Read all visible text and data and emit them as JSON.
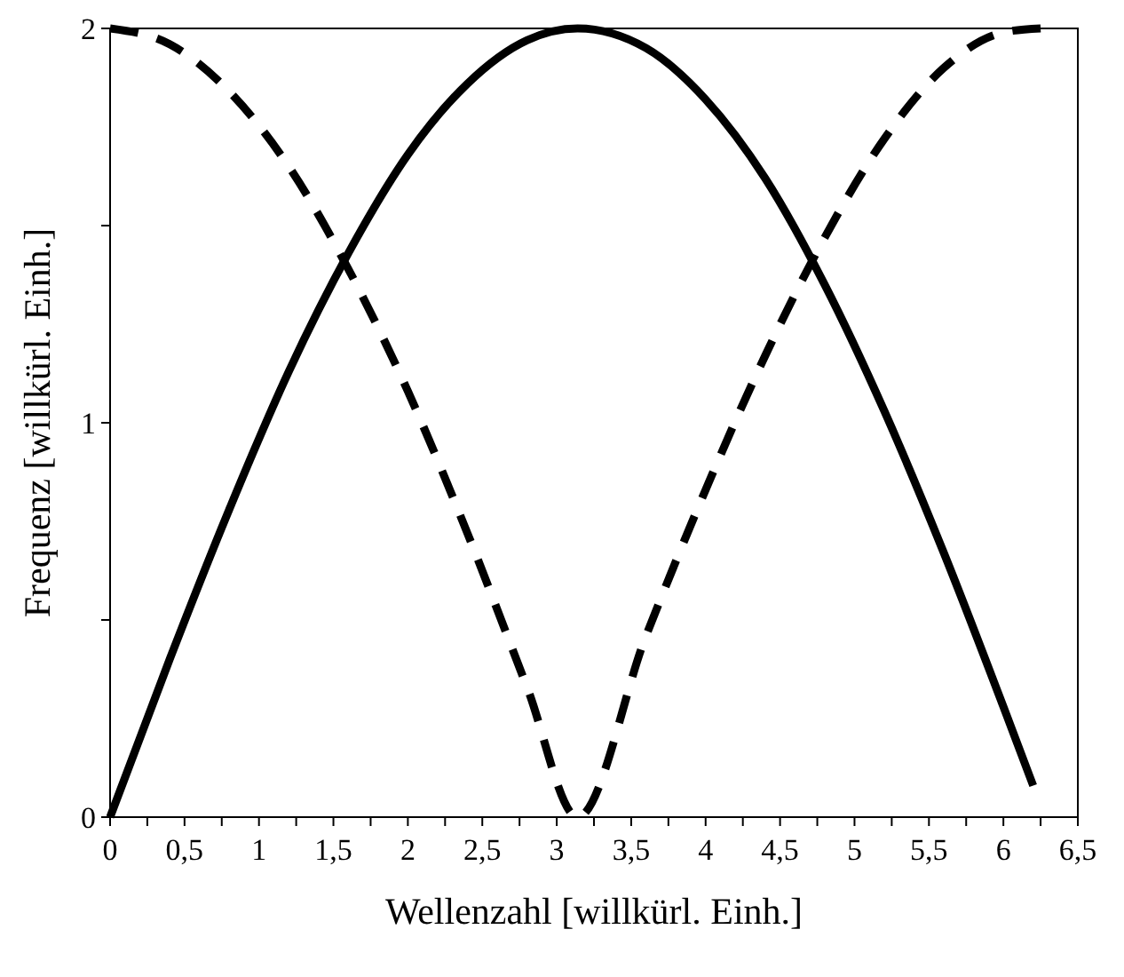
{
  "chart_data": {
    "type": "line",
    "xlabel": "Wellenzahl [willkürl. Einh.]",
    "ylabel": "Frequenz [willkürl. Einh.]",
    "xlim": [
      0,
      6.5
    ],
    "ylim": [
      0,
      2
    ],
    "xticks": [
      0,
      {
        "value": 0.25,
        "label": null
      },
      {
        "value": 0.5,
        "label": "0,5"
      },
      {
        "value": 0.75,
        "label": null
      },
      1,
      {
        "value": 1.25,
        "label": null
      },
      {
        "value": 1.5,
        "label": "1,5"
      },
      {
        "value": 1.75,
        "label": null
      },
      2,
      {
        "value": 2.25,
        "label": null
      },
      {
        "value": 2.5,
        "label": "2,5"
      },
      {
        "value": 2.75,
        "label": null
      },
      3,
      {
        "value": 3.25,
        "label": null
      },
      {
        "value": 3.5,
        "label": "3,5"
      },
      {
        "value": 3.75,
        "label": null
      },
      4,
      {
        "value": 4.25,
        "label": null
      },
      {
        "value": 4.5,
        "label": "4,5"
      },
      {
        "value": 4.75,
        "label": null
      },
      5,
      {
        "value": 5.25,
        "label": null
      },
      {
        "value": 5.5,
        "label": "5,5"
      },
      {
        "value": 5.75,
        "label": null
      },
      6,
      {
        "value": 6.25,
        "label": null
      },
      {
        "value": 6.5,
        "label": "6,5"
      }
    ],
    "yticks": [
      0,
      {
        "value": 0.5,
        "label": null
      },
      1,
      {
        "value": 1.5,
        "label": null
      },
      2
    ],
    "series": [
      {
        "color": "#000000",
        "line_style": "solid",
        "x": [
          0,
          0.4,
          0.8,
          1.2,
          1.6,
          2.0,
          2.4,
          2.8,
          3.14,
          3.6,
          4.0,
          4.4,
          4.8,
          5.2,
          5.6,
          6.0,
          6.2
        ],
        "values": [
          0,
          0.4,
          0.78,
          1.13,
          1.43,
          1.68,
          1.86,
          1.97,
          2.0,
          1.95,
          1.82,
          1.62,
          1.35,
          1.03,
          0.67,
          0.28,
          0.08
        ]
      },
      {
        "color": "#000000",
        "line_style": "dashed",
        "x": [
          0,
          0.4,
          0.8,
          1.2,
          1.6,
          2.0,
          2.4,
          2.8,
          3.14,
          3.6,
          4.0,
          4.4,
          4.8,
          5.2,
          5.6,
          6.0,
          6.25
        ],
        "values": [
          2,
          1.96,
          1.84,
          1.65,
          1.39,
          1.08,
          0.72,
          0.33,
          0,
          0.46,
          0.83,
          1.17,
          1.47,
          1.72,
          1.9,
          1.99,
          2.0
        ]
      }
    ]
  }
}
